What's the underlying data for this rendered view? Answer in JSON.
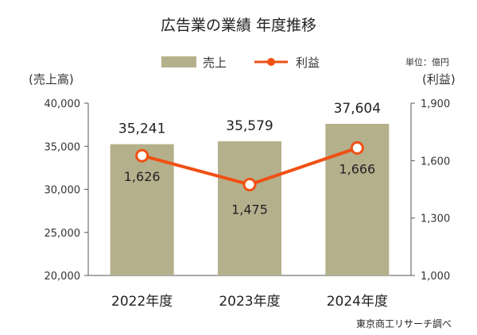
{
  "chart_data": {
    "type": "bar",
    "title": "広告業の業績 年度推移",
    "categories": [
      "2022年度",
      "2023年度",
      "2024年度"
    ],
    "series": [
      {
        "name": "売上",
        "type": "bar",
        "axis": "left",
        "color": "#b5b08c",
        "values": [
          35241,
          35579,
          37604
        ],
        "value_labels": [
          "35,241",
          "35,579",
          "37,604"
        ]
      },
      {
        "name": "利益",
        "type": "line",
        "axis": "right",
        "color": "#f05014",
        "values": [
          1626,
          1475,
          1666
        ],
        "value_labels": [
          "1,626",
          "1,475",
          "1,666"
        ]
      }
    ],
    "y_left": {
      "label": "(売上高)",
      "ylim": [
        20000,
        40000
      ],
      "ticks": [
        20000,
        25000,
        30000,
        35000,
        40000
      ],
      "tick_labels": [
        "20,000",
        "25,000",
        "30,000",
        "35,000",
        "40,000"
      ]
    },
    "y_right": {
      "label": "(利益)",
      "ylim": [
        1000,
        1900
      ],
      "ticks": [
        1000,
        1300,
        1600,
        1900
      ],
      "tick_labels": [
        "1,000",
        "1,300",
        "1,600",
        "1,900"
      ]
    },
    "unit": "単位：億円",
    "source": "東京商工リサーチ調べ",
    "legend_position": "top",
    "grid": false
  }
}
